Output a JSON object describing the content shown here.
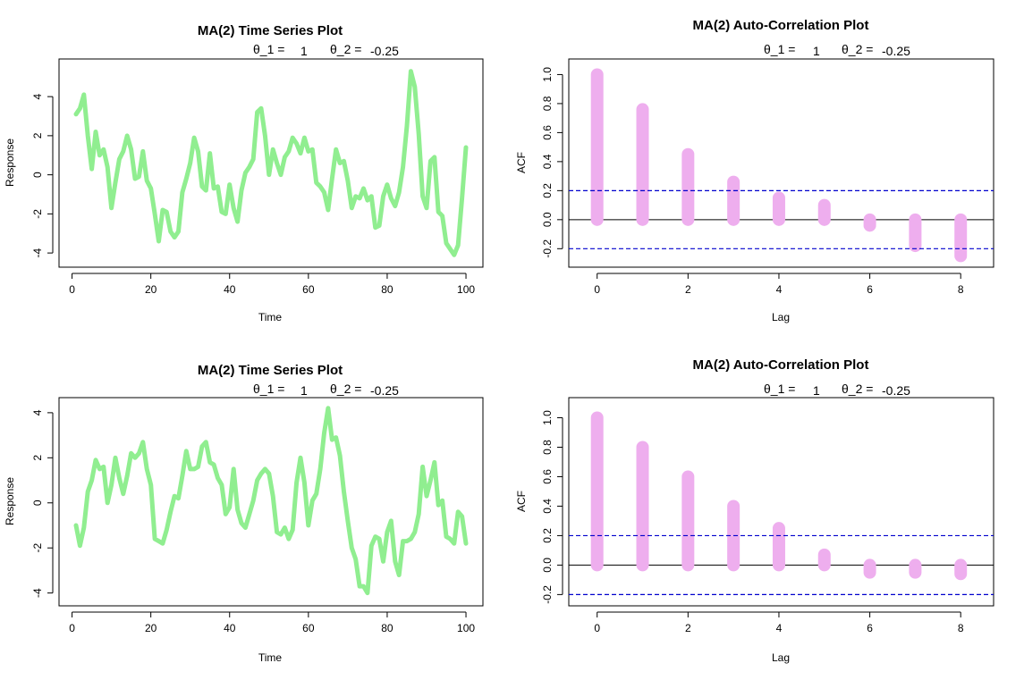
{
  "colors": {
    "series": "#90ee90",
    "acf": "#eeaeee",
    "ci": "#0000cd",
    "zero": "#000000"
  },
  "chart_data": [
    {
      "type": "line",
      "title": "MA(2) Time Series Plot",
      "theta1_label": "θ_1 =",
      "theta1_value": "1",
      "theta2_label": "θ_2 =",
      "theta2_value": "-0.25",
      "xlabel": "Time",
      "ylabel": "Response",
      "xlim": [
        1,
        100
      ],
      "ylim": [
        -4.3,
        5.5
      ],
      "xticks": [
        0,
        20,
        40,
        60,
        80,
        100
      ],
      "xtick_labels": [
        "0",
        "20",
        "40",
        "60",
        "80",
        "100"
      ],
      "yticks": [
        -4,
        -2,
        0,
        2,
        4
      ],
      "ytick_labels": [
        "-4",
        "-2",
        "0",
        "2",
        "4"
      ],
      "x": [
        1,
        2,
        3,
        4,
        5,
        6,
        7,
        8,
        9,
        10,
        11,
        12,
        13,
        14,
        15,
        16,
        17,
        18,
        19,
        20,
        21,
        22,
        23,
        24,
        25,
        26,
        27,
        28,
        29,
        30,
        31,
        32,
        33,
        34,
        35,
        36,
        37,
        38,
        39,
        40,
        41,
        42,
        43,
        44,
        45,
        46,
        47,
        48,
        49,
        50,
        51,
        52,
        53,
        54,
        55,
        56,
        57,
        58,
        59,
        60,
        61,
        62,
        63,
        64,
        65,
        66,
        67,
        68,
        69,
        70,
        71,
        72,
        73,
        74,
        75,
        76,
        77,
        78,
        79,
        80,
        81,
        82,
        83,
        84,
        85,
        86,
        87,
        88,
        89,
        90,
        91,
        92,
        93,
        94,
        95,
        96,
        97,
        98,
        99,
        100
      ],
      "y": [
        3.1,
        3.4,
        4.1,
        2.0,
        0.3,
        2.2,
        1.0,
        1.3,
        0.4,
        -1.7,
        -0.4,
        0.8,
        1.2,
        2.0,
        1.3,
        -0.2,
        -0.1,
        1.2,
        -0.3,
        -0.7,
        -2.0,
        -3.4,
        -1.8,
        -1.9,
        -2.9,
        -3.2,
        -2.9,
        -0.9,
        -0.2,
        0.6,
        1.9,
        1.2,
        -0.6,
        -0.8,
        1.1,
        -0.7,
        -0.6,
        -1.9,
        -2.0,
        -0.5,
        -1.7,
        -2.4,
        -0.8,
        0.1,
        0.4,
        0.8,
        3.2,
        3.4,
        2.0,
        0.0,
        1.3,
        0.6,
        0.0,
        0.9,
        1.2,
        1.9,
        1.6,
        1.1,
        1.9,
        1.2,
        1.3,
        -0.4,
        -0.6,
        -0.9,
        -1.8,
        -0.2,
        1.3,
        0.6,
        0.7,
        -0.3,
        -1.7,
        -1.1,
        -1.2,
        -0.7,
        -1.3,
        -1.1,
        -2.7,
        -2.6,
        -1.1,
        -0.5,
        -1.2,
        -1.6,
        -0.9,
        0.4,
        2.5,
        5.3,
        4.5,
        2.1,
        -1.1,
        -1.7,
        0.7,
        0.9,
        -1.9,
        -2.1,
        -3.5,
        -3.8,
        -4.1,
        -3.6,
        -1.2,
        1.4
      ]
    },
    {
      "type": "bar",
      "title": "MA(2) Auto-Correlation Plot",
      "theta1_label": "θ_1 =",
      "theta1_value": "1",
      "theta2_label": "θ_2 =",
      "theta2_value": "-0.25",
      "xlabel": "Lag",
      "ylabel": "ACF",
      "xlim": [
        -0.25,
        8.35
      ],
      "ylim": [
        -0.27,
        1.05
      ],
      "xticks": [
        0,
        2,
        4,
        6,
        8
      ],
      "xtick_labels": [
        "0",
        "2",
        "4",
        "6",
        "8"
      ],
      "yticks": [
        -0.2,
        0.0,
        0.2,
        0.4,
        0.6,
        0.8,
        1.0
      ],
      "ytick_labels": [
        "-0.2",
        "0.0",
        "0.2",
        "0.4",
        "0.6",
        "0.8",
        "1.0"
      ],
      "lags": [
        0,
        1,
        2,
        3,
        4,
        5,
        6,
        7,
        8
      ],
      "values": [
        1.0,
        0.76,
        0.45,
        0.26,
        0.15,
        0.1,
        -0.04,
        -0.18,
        -0.25
      ],
      "ci": 0.2
    },
    {
      "type": "line",
      "title": "MA(2) Time Series Plot",
      "theta1_label": "θ_1 =",
      "theta1_value": "1",
      "theta2_label": "θ_2 =",
      "theta2_value": "-0.25",
      "xlabel": "Time",
      "ylabel": "Response",
      "xlim": [
        1,
        100
      ],
      "ylim": [
        -4.2,
        4.3
      ],
      "xticks": [
        0,
        20,
        40,
        60,
        80,
        100
      ],
      "xtick_labels": [
        "0",
        "20",
        "40",
        "60",
        "80",
        "100"
      ],
      "yticks": [
        -4,
        -2,
        0,
        2,
        4
      ],
      "ytick_labels": [
        "-4",
        "-2",
        "0",
        "2",
        "4"
      ],
      "x": [
        1,
        2,
        3,
        4,
        5,
        6,
        7,
        8,
        9,
        10,
        11,
        12,
        13,
        14,
        15,
        16,
        17,
        18,
        19,
        20,
        21,
        22,
        23,
        24,
        25,
        26,
        27,
        28,
        29,
        30,
        31,
        32,
        33,
        34,
        35,
        36,
        37,
        38,
        39,
        40,
        41,
        42,
        43,
        44,
        45,
        46,
        47,
        48,
        49,
        50,
        51,
        52,
        53,
        54,
        55,
        56,
        57,
        58,
        59,
        60,
        61,
        62,
        63,
        64,
        65,
        66,
        67,
        68,
        69,
        70,
        71,
        72,
        73,
        74,
        75,
        76,
        77,
        78,
        79,
        80,
        81,
        82,
        83,
        84,
        85,
        86,
        87,
        88,
        89,
        90,
        91,
        92,
        93,
        94,
        95,
        96,
        97,
        98,
        99,
        100
      ],
      "y": [
        -1.0,
        -1.9,
        -1.1,
        0.5,
        1.0,
        1.9,
        1.5,
        1.6,
        0.0,
        0.8,
        2.0,
        1.1,
        0.4,
        1.2,
        2.2,
        2.0,
        2.2,
        2.7,
        1.5,
        0.8,
        -1.6,
        -1.7,
        -1.8,
        -1.2,
        -0.4,
        0.3,
        0.2,
        1.2,
        2.3,
        1.5,
        1.5,
        1.6,
        2.5,
        2.7,
        1.8,
        1.7,
        1.1,
        0.8,
        -0.5,
        -0.2,
        1.5,
        -0.3,
        -0.9,
        -1.1,
        -0.5,
        0.1,
        1.0,
        1.3,
        1.5,
        1.3,
        0.3,
        -1.3,
        -1.4,
        -1.1,
        -1.6,
        -1.2,
        0.9,
        2.0,
        0.9,
        -1.0,
        0.1,
        0.4,
        1.5,
        3.1,
        4.2,
        2.8,
        2.9,
        2.1,
        0.5,
        -0.8,
        -2.0,
        -2.5,
        -3.7,
        -3.7,
        -4.0,
        -1.9,
        -1.5,
        -1.6,
        -2.6,
        -1.3,
        -0.8,
        -2.6,
        -3.2,
        -1.7,
        -1.7,
        -1.6,
        -1.3,
        -0.5,
        1.6,
        0.3,
        1.0,
        1.8,
        -0.1,
        0.1,
        -1.5,
        -1.6,
        -1.8,
        -0.4,
        -0.6,
        -1.8
      ]
    },
    {
      "type": "bar",
      "title": "MA(2) Auto-Correlation Plot",
      "theta1_label": "θ_1 =",
      "theta1_value": "1",
      "theta2_label": "θ_2 =",
      "theta2_value": "-0.25",
      "xlabel": "Lag",
      "ylabel": "ACF",
      "xlim": [
        -0.25,
        8.35
      ],
      "ylim": [
        -0.22,
        1.08
      ],
      "xticks": [
        0,
        2,
        4,
        6,
        8
      ],
      "xtick_labels": [
        "0",
        "2",
        "4",
        "6",
        "8"
      ],
      "yticks": [
        -0.2,
        0.0,
        0.2,
        0.4,
        0.6,
        0.8,
        1.0
      ],
      "ytick_labels": [
        "-0.2",
        "0.0",
        "0.2",
        "0.4",
        "0.6",
        "0.8",
        "1.0"
      ],
      "lags": [
        0,
        1,
        2,
        3,
        4,
        5,
        6,
        7,
        8
      ],
      "values": [
        1.0,
        0.8,
        0.6,
        0.4,
        0.25,
        0.07,
        -0.05,
        -0.05,
        -0.06
      ],
      "ci": 0.2
    }
  ]
}
